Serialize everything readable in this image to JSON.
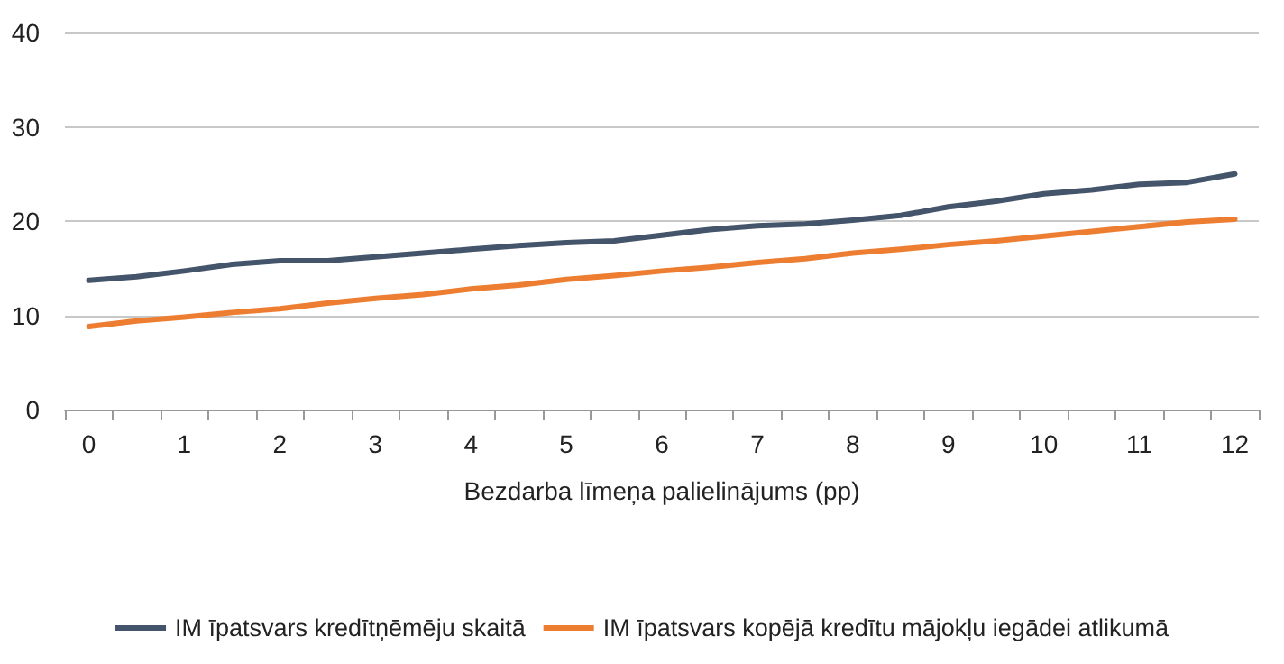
{
  "chart_data": {
    "type": "line",
    "xlabel": "Bezdarba līmeņa palielinājums (pp)",
    "x": [
      0,
      0.5,
      1,
      1.5,
      2,
      2.5,
      3,
      3.5,
      4,
      4.5,
      5,
      5.5,
      6,
      6.5,
      7,
      7.5,
      8,
      8.5,
      9,
      9.5,
      10,
      10.5,
      11,
      11.5,
      12
    ],
    "series": [
      {
        "name": "IM īpatsvars kredītņēmēju skaitā",
        "color": "#44546a",
        "values": [
          13.7,
          14.1,
          14.7,
          15.4,
          15.8,
          15.8,
          16.2,
          16.6,
          17.0,
          17.4,
          17.7,
          17.9,
          18.5,
          19.1,
          19.5,
          19.7,
          20.1,
          20.6,
          21.5,
          22.1,
          22.9,
          23.3,
          23.9,
          24.1,
          25.0
        ]
      },
      {
        "name": "IM īpatsvars kopējā kredītu mājokļu iegādei atlikumā",
        "color": "#ed7d31",
        "values": [
          8.8,
          9.4,
          9.8,
          10.3,
          10.7,
          11.3,
          11.8,
          12.2,
          12.8,
          13.2,
          13.8,
          14.2,
          14.7,
          15.1,
          15.6,
          16.0,
          16.6,
          17.0,
          17.5,
          17.9,
          18.4,
          18.9,
          19.4,
          19.9,
          20.2
        ]
      }
    ],
    "xlim": [
      -0.25,
      12.25
    ],
    "xticks": [
      {
        "value": -0.25,
        "label": null
      },
      0,
      {
        "value": 0.25,
        "label": null
      },
      {
        "value": 0.75,
        "label": null
      },
      1,
      {
        "value": 1.25,
        "label": null
      },
      {
        "value": 1.75,
        "label": null
      },
      2,
      {
        "value": 2.25,
        "label": null
      },
      {
        "value": 2.75,
        "label": null
      },
      3,
      {
        "value": 3.25,
        "label": null
      },
      {
        "value": 3.75,
        "label": null
      },
      4,
      {
        "value": 4.25,
        "label": null
      },
      {
        "value": 4.75,
        "label": null
      },
      5,
      {
        "value": 5.25,
        "label": null
      },
      {
        "value": 5.75,
        "label": null
      },
      6,
      {
        "value": 6.25,
        "label": null
      },
      {
        "value": 6.75,
        "label": null
      },
      7,
      {
        "value": 7.25,
        "label": null
      },
      {
        "value": 7.75,
        "label": null
      },
      8,
      {
        "value": 8.25,
        "label": null
      },
      {
        "value": 8.75,
        "label": null
      },
      9,
      {
        "value": 9.25,
        "label": null
      },
      {
        "value": 9.75,
        "label": null
      },
      10,
      {
        "value": 10.25,
        "label": null
      },
      {
        "value": 10.75,
        "label": null
      },
      11,
      {
        "value": 11.25,
        "label": null
      },
      {
        "value": 11.75,
        "label": null
      },
      12,
      {
        "value": 12.25,
        "label": null
      }
    ],
    "ylim": [
      0,
      40
    ],
    "yticks": [
      0,
      10,
      20,
      30,
      40
    ],
    "grid": "y",
    "legend": "bottom",
    "marker": "none",
    "line_style": "solid"
  }
}
